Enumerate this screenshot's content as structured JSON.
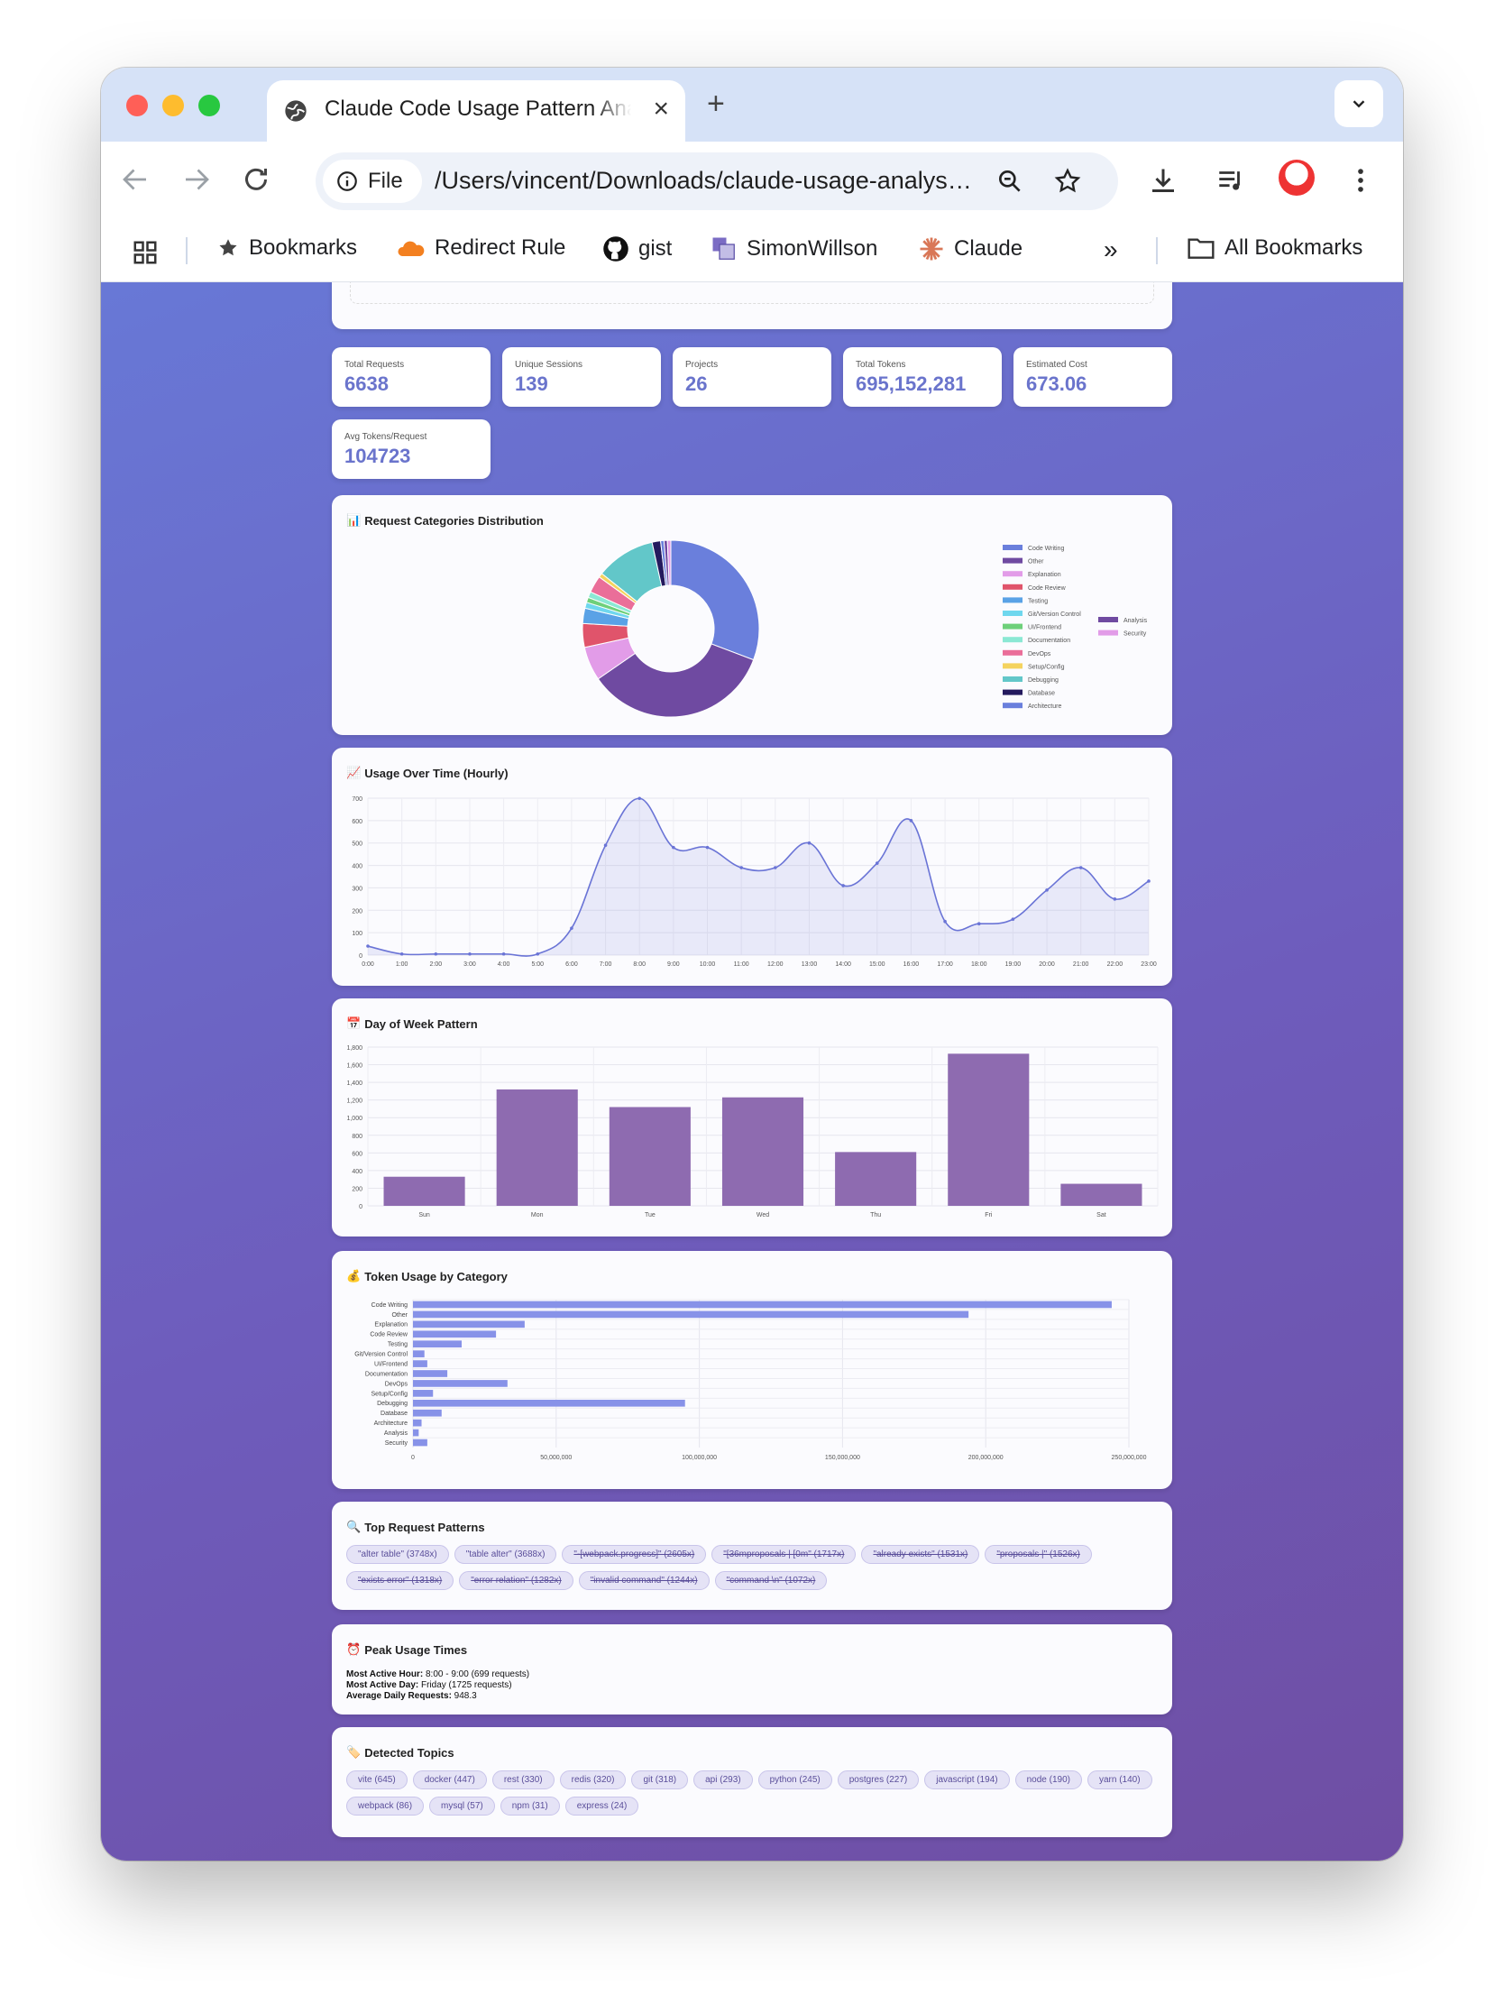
{
  "browser": {
    "tab_title": "Claude Code Usage Pattern Analysis",
    "scheme_chip": "File",
    "url": "/Users/vincent/Downloads/claude-usage-analysis.html",
    "bookmarks": [
      "Bookmarks",
      "Redirect Rule",
      "gist",
      "SimonWillson",
      "Claude"
    ],
    "all_bookmarks": "All Bookmarks",
    "icons": [
      "globe-icon",
      "close-icon",
      "plus-icon",
      "chevron-down-icon",
      "back-arrow-icon",
      "forward-arrow-icon",
      "reload-icon",
      "info-icon",
      "zoom-icon",
      "star-icon",
      "download-icon",
      "media-queue-icon",
      "avatar",
      "more-vert-icon",
      "apps-grid-icon",
      "cloud-icon",
      "github-icon",
      "folder-icon"
    ]
  },
  "stats": [
    {
      "label": "Total Requests",
      "value": "6638"
    },
    {
      "label": "Unique Sessions",
      "value": "139"
    },
    {
      "label": "Projects",
      "value": "26"
    },
    {
      "label": "Total Tokens",
      "value": "695,152,281"
    },
    {
      "label": "Estimated Cost",
      "value": "673.06"
    },
    {
      "label": "Avg Tokens/Request",
      "value": "104723"
    }
  ],
  "sections": {
    "categories": "Request Categories Distribution",
    "hourly": "Usage Over Time (Hourly)",
    "weekly": "Day of Week Pattern",
    "tokens": "Token Usage by Category",
    "patterns": "Top Request Patterns",
    "peak": "Peak Usage Times",
    "topics": "Detected Topics"
  },
  "section_icons": [
    "bar-chart-icon",
    "line-chart-icon",
    "calendar-icon",
    "money-bag-icon",
    "magnifier-icon",
    "alarm-clock-icon",
    "tag-icon"
  ],
  "chart_data": [
    {
      "type": "pie",
      "title": "Request Categories Distribution",
      "labels": [
        "Code Writing",
        "Other",
        "Explanation",
        "Code Review",
        "Testing",
        "Git/Version Control",
        "UI/Frontend",
        "Documentation",
        "DevOps",
        "Setup/Config",
        "Debugging",
        "Database",
        "Architecture",
        "Analysis",
        "Security"
      ],
      "values": [
        1980,
        2230,
        400,
        280,
        180,
        70,
        60,
        70,
        200,
        50,
        700,
        100,
        40,
        40,
        40
      ],
      "colors": [
        "#6a7fdc",
        "#6f4aa1",
        "#e29ce8",
        "#e0546b",
        "#5aa2e6",
        "#6fd7ee",
        "#6ed07a",
        "#8be8d4",
        "#ea6e99",
        "#f4d35e",
        "#62c7c9",
        "#241a5e",
        "#6a7fdc",
        "#6f4aa1",
        "#e29ce8"
      ],
      "legend": "right"
    },
    {
      "type": "area",
      "title": "Usage Over Time (Hourly)",
      "categories": [
        "0:00",
        "1:00",
        "2:00",
        "3:00",
        "4:00",
        "5:00",
        "6:00",
        "7:00",
        "8:00",
        "9:00",
        "10:00",
        "11:00",
        "12:00",
        "13:00",
        "14:00",
        "15:00",
        "16:00",
        "17:00",
        "18:00",
        "19:00",
        "20:00",
        "21:00",
        "22:00",
        "23:00"
      ],
      "values": [
        40,
        5,
        5,
        5,
        5,
        5,
        120,
        490,
        699,
        480,
        480,
        390,
        390,
        500,
        310,
        410,
        600,
        150,
        140,
        160,
        290,
        390,
        250,
        330
      ],
      "ylim": [
        0,
        700
      ],
      "yticks": [
        0,
        100,
        200,
        300,
        400,
        500,
        600,
        700
      ],
      "color": "#6a74d6",
      "grid": true
    },
    {
      "type": "bar",
      "title": "Day of Week Pattern",
      "categories": [
        "Sun",
        "Mon",
        "Tue",
        "Wed",
        "Thu",
        "Fri",
        "Sat"
      ],
      "values": [
        330,
        1320,
        1120,
        1230,
        610,
        1725,
        250
      ],
      "ylim": [
        0,
        1800
      ],
      "yticks": [
        "0",
        "200",
        "400",
        "600",
        "800",
        "1,000",
        "1,200",
        "1,400",
        "1,600",
        "1,800"
      ],
      "color": "#8e6bb0",
      "grid": true
    },
    {
      "type": "bar",
      "orientation": "horizontal",
      "title": "Token Usage by Category",
      "categories": [
        "Code Writing",
        "Other",
        "Explanation",
        "Code Review",
        "Testing",
        "Git/Version Control",
        "UI/Frontend",
        "Documentation",
        "DevOps",
        "Setup/Config",
        "Debugging",
        "Database",
        "Architecture",
        "Analysis",
        "Security"
      ],
      "values": [
        244000000,
        194000000,
        39000000,
        29000000,
        17000000,
        4000000,
        5000000,
        12000000,
        33000000,
        7000000,
        95000000,
        10000000,
        3000000,
        2000000,
        5000000
      ],
      "xlim": [
        0,
        250000000
      ],
      "xticks": [
        "0",
        "50,000,000",
        "100,000,000",
        "150,000,000",
        "200,000,000",
        "250,000,000"
      ],
      "color": "#8792e8",
      "grid": true
    }
  ],
  "patterns": [
    {
      "text": "\"alter table\" (3748x)",
      "struck": false
    },
    {
      "text": "\"table alter\" (3688x)",
      "struck": false
    },
    {
      "text": "\"-[webpack.progress]\" (2605x)",
      "struck": true
    },
    {
      "text": "\"[36mproposals | [0m\" (1717x)",
      "struck": true
    },
    {
      "text": "\"already exists\" (1531x)",
      "struck": true
    },
    {
      "text": "\"proposals |\" (1526x)",
      "struck": true
    },
    {
      "text": "\"exists error\" (1318x)",
      "struck": true
    },
    {
      "text": "\"error relation\" (1282x)",
      "struck": true
    },
    {
      "text": "\"invalid command\" (1244x)",
      "struck": true
    },
    {
      "text": "\"command \\n\" (1072x)",
      "struck": true
    }
  ],
  "peak": {
    "hour_label": "Most Active Hour:",
    "hour_value": " 8:00 - 9:00 (699 requests)",
    "day_label": "Most Active Day:",
    "day_value": " Friday (1725 requests)",
    "avg_label": "Average Daily Requests:",
    "avg_value": " 948.3"
  },
  "topics": [
    "vite (645)",
    "docker (447)",
    "rest (330)",
    "redis (320)",
    "git (318)",
    "api (293)",
    "python (245)",
    "postgres (227)",
    "javascript (194)",
    "node (190)",
    "yarn (140)",
    "webpack (86)",
    "mysql (57)",
    "npm (31)",
    "express (24)"
  ]
}
